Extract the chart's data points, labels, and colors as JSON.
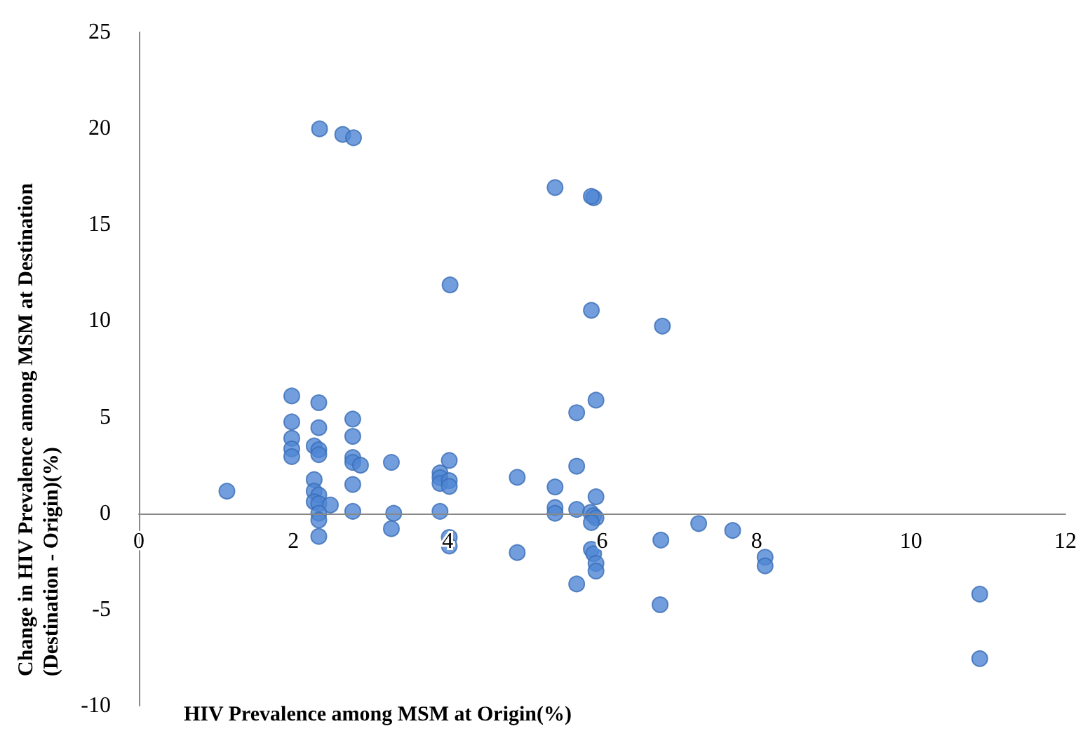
{
  "chart_data": {
    "type": "scatter",
    "xlabel": "HIV Prevalence among MSM at Origin(%)",
    "ylabel": "Change in HIV Prevalence among MSM at Destination (Destination - Origin)(%)",
    "x": [
      1.14,
      1.98,
      1.98,
      1.98,
      1.98,
      1.98,
      2.33,
      2.33,
      2.27,
      2.33,
      2.33,
      2.27,
      2.27,
      2.33,
      2.27,
      2.33,
      2.48,
      2.33,
      2.33,
      2.33,
      2.77,
      2.77,
      2.77,
      2.77,
      2.87,
      2.77,
      2.77,
      3.27,
      3.3,
      3.27,
      3.9,
      3.9,
      3.9,
      4.02,
      4.02,
      4.02,
      3.9,
      4.02,
      4.02,
      4.9,
      4.9,
      5.39,
      5.39,
      5.39,
      5.67,
      5.92,
      5.67,
      5.67,
      5.92,
      5.85,
      5.89,
      5.92,
      5.86,
      5.86,
      5.89,
      5.92,
      5.92,
      5.67,
      6.76,
      6.75,
      7.25,
      7.69,
      8.11,
      8.11,
      10.89,
      10.89,
      2.34,
      2.64,
      2.78,
      5.39,
      5.89,
      5.86,
      4.03,
      5.86,
      6.78
    ],
    "series": [
      {
        "color": "#4f86d4",
        "values": [
          1.15,
          6.1,
          4.75,
          3.9,
          3.35,
          2.95,
          5.75,
          4.45,
          3.5,
          3.3,
          3.05,
          1.75,
          1.15,
          0.95,
          0.6,
          0.5,
          0.43,
          0,
          -0.35,
          -1.2,
          4.9,
          4.0,
          2.9,
          2.65,
          2.5,
          1.5,
          0.1,
          2.65,
          0,
          -0.8,
          2.1,
          1.85,
          1.55,
          2.75,
          1.7,
          1.4,
          0.1,
          -1.25,
          -1.7,
          1.87,
          -2.04,
          1.37,
          0.3,
          0,
          5.23,
          5.88,
          2.45,
          0.2,
          0.86,
          0.05,
          -0.12,
          -0.24,
          -0.48,
          -1.87,
          -2.1,
          -2.6,
          -3.0,
          -3.67,
          -1.39,
          -4.75,
          -0.53,
          -0.89,
          -2.28,
          -2.73,
          -4.2,
          -7.55,
          19.98,
          19.69,
          19.52,
          16.93,
          16.4,
          16.47,
          11.87,
          10.55,
          9.73
        ]
      }
    ],
    "xlim": [
      0,
      12
    ],
    "xticks": [
      0,
      2,
      4,
      6,
      8,
      10,
      12
    ],
    "ylim": [
      -10,
      25
    ],
    "yticks": [
      -10,
      -5,
      0,
      5,
      10,
      15,
      20,
      25
    ],
    "grid": false,
    "marker": "circle"
  }
}
